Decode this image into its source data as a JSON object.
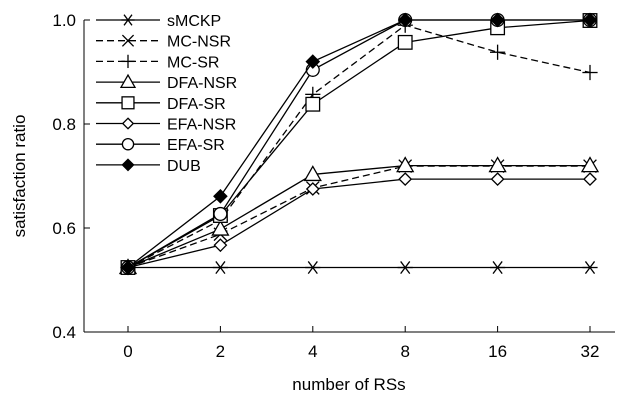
{
  "chart_data": {
    "type": "line",
    "categories": [
      "0",
      "2",
      "4",
      "8",
      "16",
      "32"
    ],
    "xlabel": "number of RSs",
    "ylabel": "satisfaction ratio",
    "ylim": [
      0.4,
      1.0
    ],
    "yticks": [
      "0.4",
      "0.6",
      "0.8",
      "1.0"
    ],
    "grid": false,
    "legend_position": "top-left",
    "series": [
      {
        "name": "sMCKP",
        "marker": "asterisk",
        "dash": "solid",
        "values": [
          0.524,
          0.524,
          0.524,
          0.524,
          0.524,
          0.524
        ]
      },
      {
        "name": "MC-NSR",
        "marker": "x",
        "dash": "dashed",
        "values": [
          0.524,
          0.588,
          0.677,
          0.719,
          0.719,
          0.719
        ]
      },
      {
        "name": "MC-SR",
        "marker": "plus",
        "dash": "dashed",
        "values": [
          0.524,
          0.615,
          0.857,
          0.99,
          0.938,
          0.899
        ]
      },
      {
        "name": "DFA-NSR",
        "marker": "triangle",
        "dash": "solid",
        "values": [
          0.524,
          0.598,
          0.703,
          0.72,
          0.72,
          0.72
        ]
      },
      {
        "name": "DFA-SR",
        "marker": "square",
        "dash": "solid",
        "values": [
          0.524,
          0.624,
          0.838,
          0.957,
          0.985,
          0.999
        ]
      },
      {
        "name": "EFA-NSR",
        "marker": "diamond",
        "dash": "solid",
        "values": [
          0.524,
          0.567,
          0.675,
          0.694,
          0.694,
          0.694
        ]
      },
      {
        "name": "EFA-SR",
        "marker": "circle",
        "dash": "solid",
        "values": [
          0.524,
          0.627,
          0.904,
          1.0,
          1.0,
          1.0
        ]
      },
      {
        "name": "DUB",
        "marker": "filled-diamond",
        "dash": "solid",
        "values": [
          0.524,
          0.661,
          0.92,
          1.0,
          1.0,
          1.0
        ]
      }
    ]
  }
}
